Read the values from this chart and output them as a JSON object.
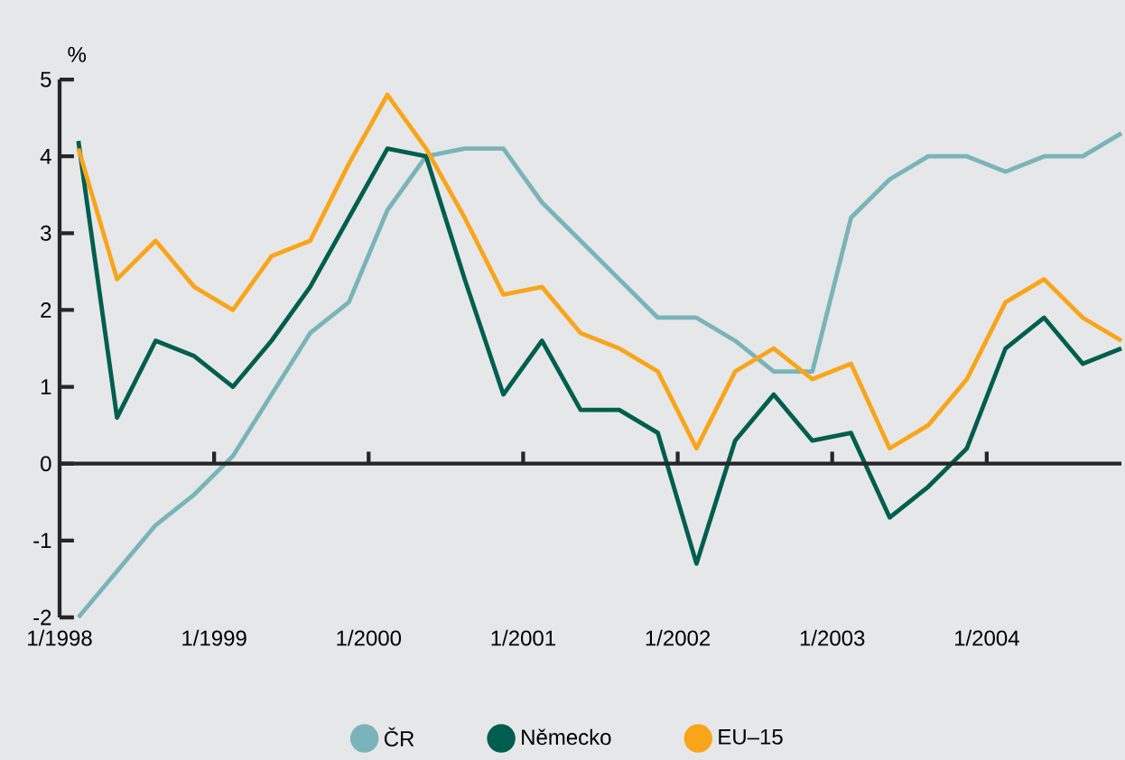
{
  "chart_data": {
    "type": "line",
    "ylabel": "%",
    "x": [
      "1998-02-15",
      "1998-05-15",
      "1998-08-15",
      "1998-11-15",
      "1999-02-15",
      "1999-05-15",
      "1999-08-15",
      "1999-11-15",
      "2000-02-15",
      "2000-05-15",
      "2000-08-15",
      "2000-11-15",
      "2001-02-15",
      "2001-05-15",
      "2001-08-15",
      "2001-11-15",
      "2002-02-15",
      "2002-05-15",
      "2002-08-15",
      "2002-11-15",
      "2003-02-15",
      "2003-05-15",
      "2003-08-15",
      "2003-11-15",
      "2004-02-15",
      "2004-05-15",
      "2004-08-15",
      "2004-11-15"
    ],
    "xlim": [
      "1998-01",
      "2004-11-15"
    ],
    "xticks": [
      {
        "value": "1998-01",
        "label": "1/1998"
      },
      {
        "value": "1999-01",
        "label": "1/1999"
      },
      {
        "value": "2000-01",
        "label": "1/2000"
      },
      {
        "value": "2001-01",
        "label": "1/2001"
      },
      {
        "value": "2002-01",
        "label": "1/2002"
      },
      {
        "value": "2003-01",
        "label": "1/2003"
      },
      {
        "value": "2004-01",
        "label": "1/2004"
      }
    ],
    "ylim": [
      -2,
      5
    ],
    "yticks": [
      -2,
      -1,
      0,
      1,
      2,
      3,
      4,
      5
    ],
    "legend": "bottom",
    "marker": "none",
    "line_style": "solid",
    "series": [
      {
        "name": "ČR",
        "color": "#7ab4b8",
        "values": [
          -2.0,
          -1.4,
          -0.8,
          -0.4,
          0.1,
          0.9,
          1.7,
          2.1,
          3.3,
          4.0,
          4.1,
          4.1,
          3.4,
          2.9,
          2.4,
          1.9,
          1.9,
          1.6,
          1.2,
          1.2,
          3.2,
          3.7,
          4.0,
          4.0,
          3.8,
          4.0,
          4.0,
          4.3
        ]
      },
      {
        "name": "Německo",
        "color": "#005e4e",
        "values": [
          4.2,
          0.6,
          1.6,
          1.4,
          1.0,
          1.6,
          2.3,
          3.2,
          4.1,
          4.0,
          2.4,
          0.9,
          1.6,
          0.7,
          0.7,
          0.4,
          -1.3,
          0.3,
          0.9,
          0.3,
          0.4,
          -0.7,
          -0.3,
          0.2,
          1.5,
          1.9,
          1.3,
          1.5
        ]
      },
      {
        "name": "EU–15",
        "color": "#f9a51b",
        "values": [
          4.1,
          2.4,
          2.9,
          2.3,
          2.0,
          2.7,
          2.9,
          3.9,
          4.8,
          4.1,
          3.2,
          2.2,
          2.3,
          1.7,
          1.5,
          1.2,
          0.2,
          1.2,
          1.5,
          1.1,
          1.3,
          0.2,
          0.5,
          1.1,
          2.1,
          2.4,
          1.9,
          1.6
        ]
      }
    ]
  }
}
